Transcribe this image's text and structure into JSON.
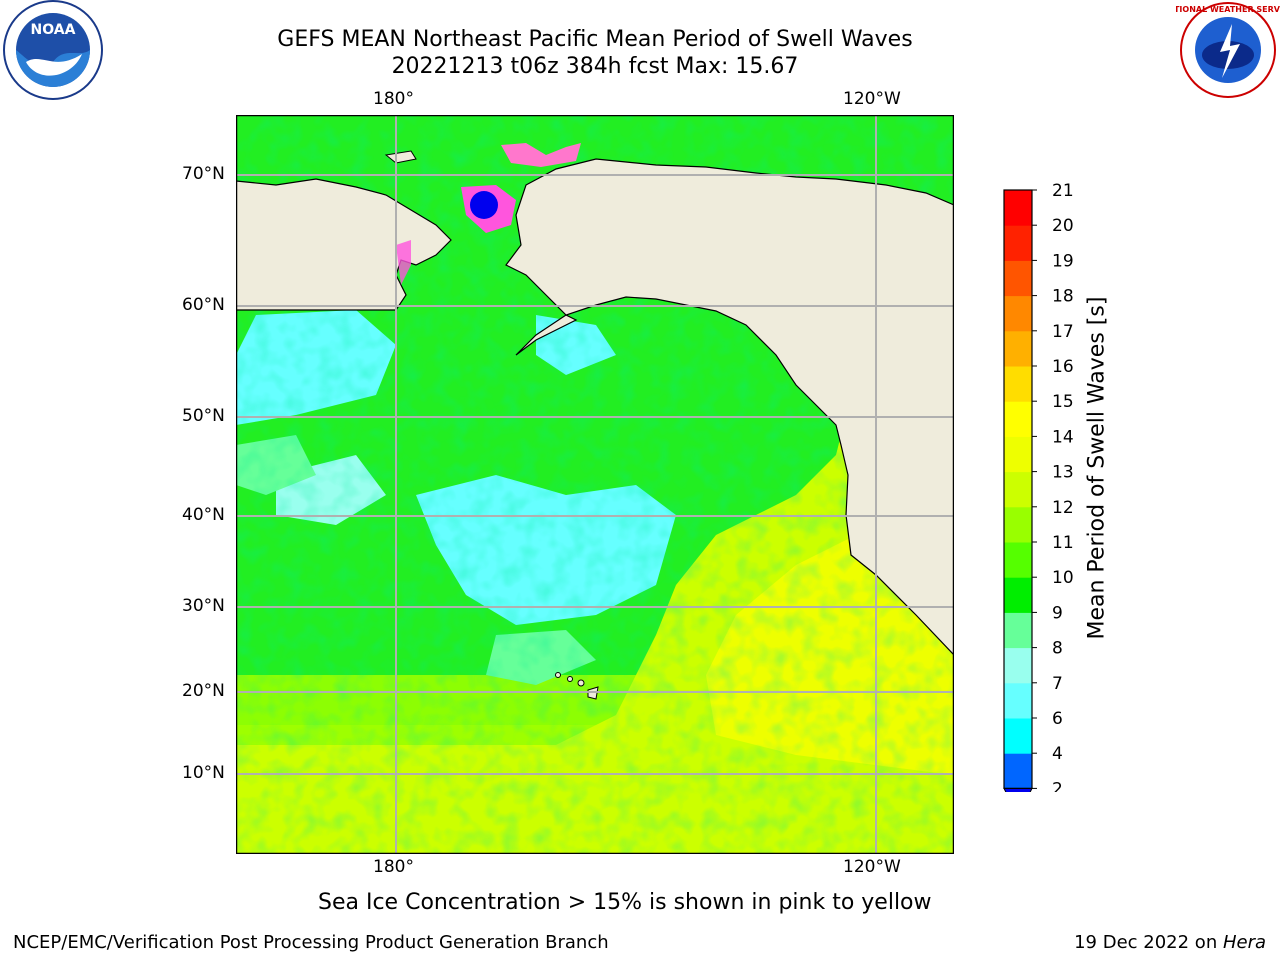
{
  "header": {
    "title_line1": "GEFS MEAN Northeast Pacific Mean Period of Swell Waves",
    "title_line2": "20221213 t06z 384h fcst   Max: 15.67"
  },
  "logos": {
    "left": "NOAA",
    "right": "NATIONAL WEATHER SERVICE"
  },
  "map": {
    "lon_ticks": [
      "180°",
      "120°W"
    ],
    "lat_ticks": [
      "70°N",
      "60°N",
      "50°N",
      "40°N",
      "30°N",
      "20°N",
      "10°N"
    ],
    "land_color": "#efecdc",
    "grid_color": "#b0b0b0"
  },
  "colorbar": {
    "label": "Mean Period of Swell Waves [s]",
    "ticks": [
      "2",
      "4",
      "6",
      "7",
      "8",
      "9",
      "10",
      "11",
      "12",
      "13",
      "14",
      "15",
      "16",
      "17",
      "18",
      "19",
      "20",
      "21"
    ],
    "colors": [
      "#0066ff",
      "#00ccff",
      "#00ffff",
      "#66ffff",
      "#99ffee",
      "#66ff99",
      "#00ee00",
      "#55ff00",
      "#99ff00",
      "#ccff00",
      "#eeff00",
      "#ffff00",
      "#ffdd00",
      "#ffb000",
      "#ff8800",
      "#ff5500",
      "#ff2200",
      "#ff0000"
    ],
    "under_color": "#0000ee"
  },
  "note": "Sea Ice Concentration > 15% is shown in pink to yellow",
  "footer": {
    "left": "NCEP/EMC/Verification Post Processing Product Generation Branch",
    "right_date": "19 Dec 2022 on ",
    "right_host": "Hera"
  }
}
